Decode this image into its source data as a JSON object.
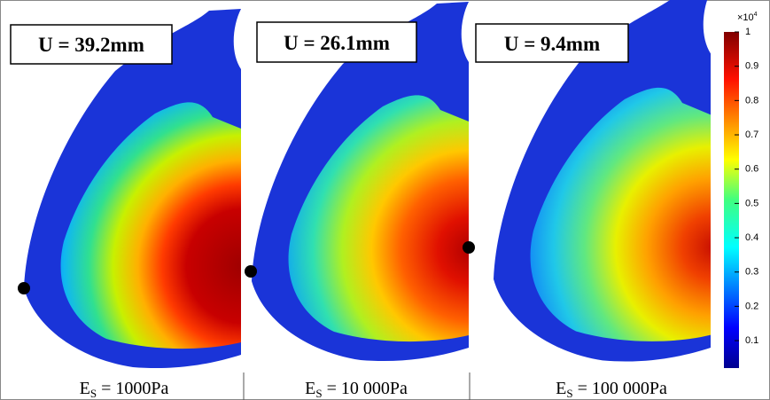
{
  "panels": [
    {
      "displacement_label": "U = 39.2mm",
      "modulus_symbol": "E",
      "modulus_subscript": "S",
      "modulus_value": " = 1000Pa"
    },
    {
      "displacement_label": "U = 26.1mm",
      "modulus_symbol": "E",
      "modulus_subscript": "S",
      "modulus_value": " = 10 000Pa"
    },
    {
      "displacement_label": "U = 9.4mm",
      "modulus_symbol": "E",
      "modulus_subscript": "S",
      "modulus_value": " = 100 000Pa"
    }
  ],
  "colorbar": {
    "multiplier_base": "×10",
    "multiplier_exponent": "4",
    "range": [
      0.02,
      1
    ],
    "ticks": [
      0.1,
      0.2,
      0.3,
      0.4,
      0.5,
      0.6,
      0.7,
      0.8,
      0.9,
      1
    ]
  }
}
